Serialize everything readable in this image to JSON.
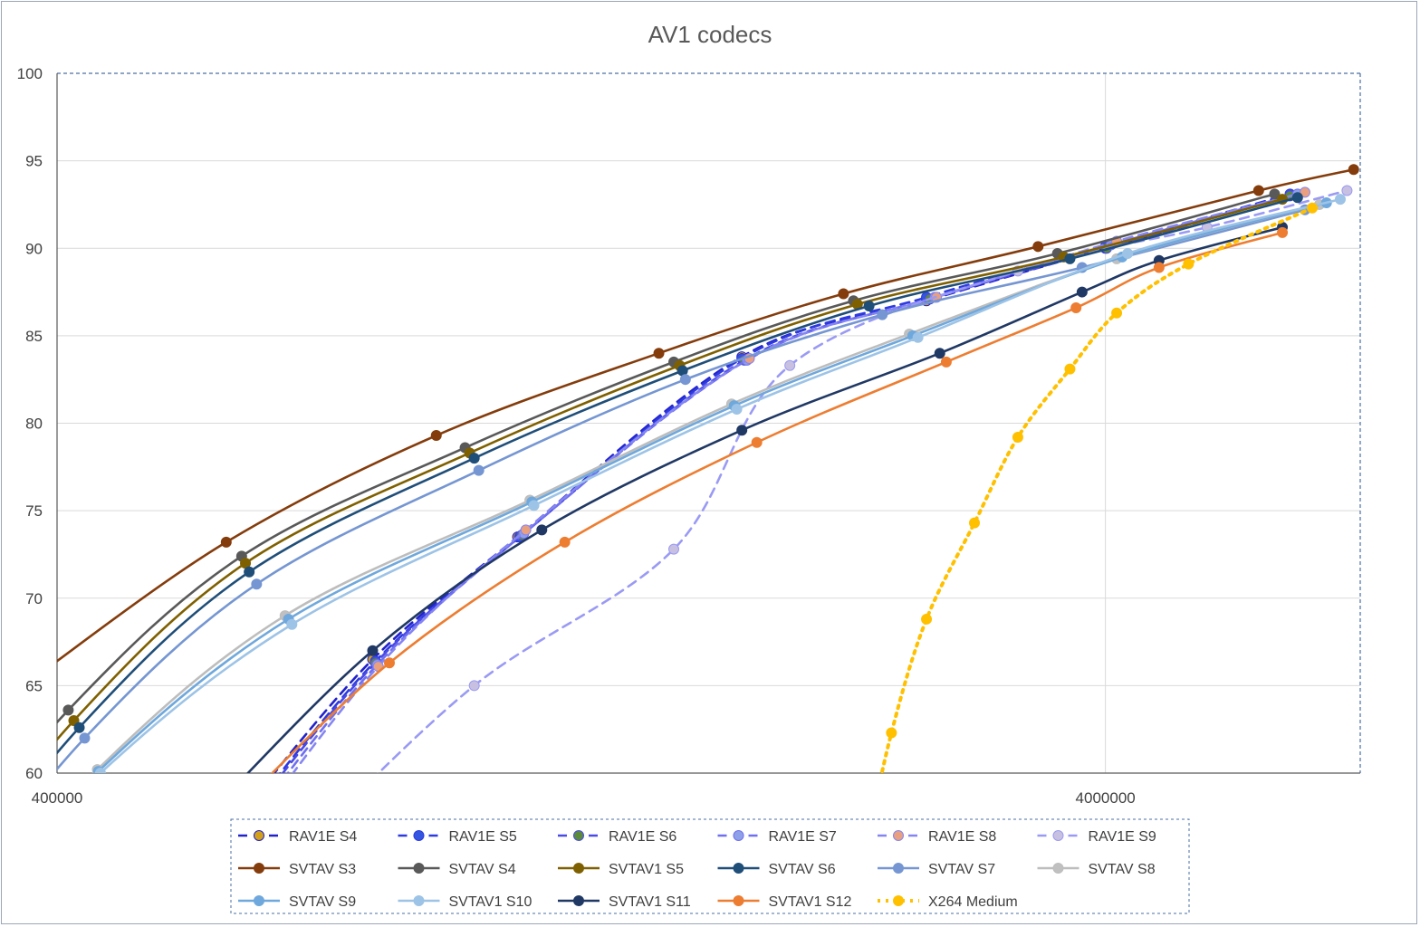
{
  "chart_data": {
    "type": "scatter",
    "title": "AV1 codecs",
    "xscale": "log",
    "xlim": [
      400000,
      7000000
    ],
    "ylim": [
      60,
      100
    ],
    "x_ticks": [
      {
        "value": 400000,
        "label": "400000"
      },
      {
        "value": 4000000,
        "label": "4000000"
      }
    ],
    "y_ticks": [
      {
        "value": 60,
        "label": "60"
      },
      {
        "value": 65,
        "label": "65"
      },
      {
        "value": 70,
        "label": "70"
      },
      {
        "value": 75,
        "label": "75"
      },
      {
        "value": 80,
        "label": "80"
      },
      {
        "value": 85,
        "label": "85"
      },
      {
        "value": 90,
        "label": "90"
      },
      {
        "value": 95,
        "label": "95"
      },
      {
        "value": 100,
        "label": "100"
      }
    ],
    "grid": true,
    "legend_position": "bottom",
    "series": [
      {
        "name": "RAV1E S4",
        "color": "#2222cc",
        "line": "dashed",
        "marker": "#d4a017",
        "points": [
          [
            800000,
            66.5
          ],
          [
            1100000,
            73.5
          ],
          [
            1800000,
            83.8
          ],
          [
            2700000,
            87.0
          ],
          [
            4000000,
            90.0
          ],
          [
            6000000,
            93.0
          ]
        ]
      },
      {
        "name": "RAV1E S5",
        "color": "#2d3ae0",
        "line": "dashed",
        "marker": "#3355e0",
        "points": [
          [
            805000,
            66.4
          ],
          [
            1105000,
            73.5
          ],
          [
            1800000,
            83.7
          ],
          [
            2700000,
            87.2
          ],
          [
            4000000,
            90.1
          ],
          [
            6000000,
            93.1
          ]
        ]
      },
      {
        "name": "RAV1E S6",
        "color": "#4a4ae6",
        "line": "dashed",
        "marker": "#5a8a3a",
        "points": [
          [
            805000,
            66.3
          ],
          [
            1110000,
            73.6
          ],
          [
            1810000,
            83.6
          ],
          [
            2720000,
            87.1
          ],
          [
            4010000,
            90.0
          ],
          [
            6000000,
            93.0
          ]
        ]
      },
      {
        "name": "RAV1E S7",
        "color": "#6f6ff0",
        "line": "dashed",
        "marker": "#8ea0e8",
        "points": [
          [
            808000,
            66.2
          ],
          [
            1115000,
            73.7
          ],
          [
            1820000,
            83.6
          ],
          [
            2750000,
            87.2
          ],
          [
            4050000,
            90.2
          ],
          [
            6100000,
            93.1
          ]
        ]
      },
      {
        "name": "RAV1E S8",
        "color": "#8585f2",
        "line": "dashed",
        "marker": "#e8a080",
        "points": [
          [
            810000,
            66.1
          ],
          [
            1120000,
            73.9
          ],
          [
            1830000,
            83.7
          ],
          [
            2760000,
            87.2
          ],
          [
            4100000,
            90.4
          ],
          [
            6200000,
            93.2
          ]
        ]
      },
      {
        "name": "RAV1E S9",
        "color": "#9a9af5",
        "line": "dashed",
        "marker": "#c8c0e0",
        "points": [
          [
            1000000,
            65.0
          ],
          [
            1550000,
            72.8
          ],
          [
            2000000,
            83.3
          ],
          [
            3300000,
            88.7
          ],
          [
            5000000,
            91.2
          ],
          [
            6800000,
            93.3
          ]
        ]
      },
      {
        "name": "SVTAV S3",
        "color": "#843c0c",
        "line": "solid",
        "marker": "#843c0c",
        "points": [
          [
            580000,
            73.2
          ],
          [
            920000,
            79.3
          ],
          [
            1500000,
            84.0
          ],
          [
            2250000,
            87.4
          ],
          [
            3450000,
            90.1
          ],
          [
            5600000,
            93.3
          ],
          [
            6900000,
            94.5
          ]
        ]
      },
      {
        "name": "SVTAV S4",
        "color": "#595959",
        "line": "solid",
        "marker": "#595959",
        "points": [
          [
            410000,
            63.6
          ],
          [
            600000,
            72.4
          ],
          [
            980000,
            78.6
          ],
          [
            1550000,
            83.5
          ],
          [
            2300000,
            87.0
          ],
          [
            3600000,
            89.7
          ],
          [
            5800000,
            93.1
          ]
        ]
      },
      {
        "name": "SVTAV1 S5",
        "color": "#7f6000",
        "line": "solid",
        "marker": "#7f6000",
        "points": [
          [
            415000,
            63.0
          ],
          [
            605000,
            72.0
          ],
          [
            990000,
            78.3
          ],
          [
            1570000,
            83.3
          ],
          [
            2320000,
            86.8
          ],
          [
            3650000,
            89.5
          ],
          [
            5900000,
            92.8
          ]
        ]
      },
      {
        "name": "SVTAV S6",
        "color": "#1f4e79",
        "line": "solid",
        "marker": "#1f4e79",
        "points": [
          [
            420000,
            62.6
          ],
          [
            610000,
            71.5
          ],
          [
            1000000,
            78.0
          ],
          [
            1580000,
            83.0
          ],
          [
            2380000,
            86.7
          ],
          [
            3700000,
            89.4
          ],
          [
            6100000,
            92.9
          ]
        ]
      },
      {
        "name": "SVTAV S7",
        "color": "#7596d2",
        "line": "solid",
        "marker": "#7596d2",
        "points": [
          [
            425000,
            62.0
          ],
          [
            620000,
            70.8
          ],
          [
            1010000,
            77.3
          ],
          [
            1590000,
            82.5
          ],
          [
            2450000,
            86.2
          ],
          [
            3800000,
            88.9
          ],
          [
            6200000,
            92.2
          ]
        ]
      },
      {
        "name": "SVTAV S8",
        "color": "#bdbdbd",
        "line": "solid",
        "marker": "#c0c0c0",
        "points": [
          [
            437000,
            60.2
          ],
          [
            660000,
            69.0
          ],
          [
            1130000,
            75.6
          ],
          [
            1760000,
            81.1
          ],
          [
            2600000,
            85.1
          ],
          [
            4100000,
            89.4
          ],
          [
            6400000,
            92.5
          ]
        ]
      },
      {
        "name": "SVTAV S9",
        "color": "#6fa8dc",
        "line": "solid",
        "marker": "#6fa8dc",
        "points": [
          [
            438000,
            60.1
          ],
          [
            665000,
            68.8
          ],
          [
            1135000,
            75.5
          ],
          [
            1770000,
            81.0
          ],
          [
            2620000,
            85.0
          ],
          [
            4150000,
            89.5
          ],
          [
            6500000,
            92.6
          ]
        ]
      },
      {
        "name": "SVTAV1 S10",
        "color": "#9dc3e6",
        "line": "solid",
        "marker": "#9dc3e6",
        "points": [
          [
            440000,
            60.0
          ],
          [
            670000,
            68.5
          ],
          [
            1140000,
            75.3
          ],
          [
            1780000,
            80.8
          ],
          [
            2650000,
            84.9
          ],
          [
            4200000,
            89.7
          ],
          [
            6700000,
            92.8
          ]
        ]
      },
      {
        "name": "SVTAV1 S11",
        "color": "#203864",
        "line": "solid",
        "marker": "#203864",
        "points": [
          [
            800000,
            67.0
          ],
          [
            1160000,
            73.9
          ],
          [
            1800000,
            79.6
          ],
          [
            2780000,
            84.0
          ],
          [
            3800000,
            87.5
          ],
          [
            4500000,
            89.3
          ],
          [
            5900000,
            91.2
          ]
        ]
      },
      {
        "name": "SVTAV1 S12",
        "color": "#ed7d31",
        "line": "solid",
        "marker": "#ed7d31",
        "points": [
          [
            830000,
            66.3
          ],
          [
            1220000,
            73.2
          ],
          [
            1860000,
            78.9
          ],
          [
            2820000,
            83.5
          ],
          [
            3750000,
            86.6
          ],
          [
            4500000,
            88.9
          ],
          [
            5900000,
            90.9
          ]
        ]
      },
      {
        "name": "X264 Medium",
        "color": "#ffc000",
        "line": "dotted",
        "marker": "#ffc000",
        "points": [
          [
            2500000,
            62.3
          ],
          [
            2700000,
            68.8
          ],
          [
            3000000,
            74.3
          ],
          [
            3300000,
            79.2
          ],
          [
            3700000,
            83.1
          ],
          [
            4100000,
            86.3
          ],
          [
            4800000,
            89.1
          ],
          [
            6300000,
            92.3
          ]
        ]
      }
    ]
  }
}
